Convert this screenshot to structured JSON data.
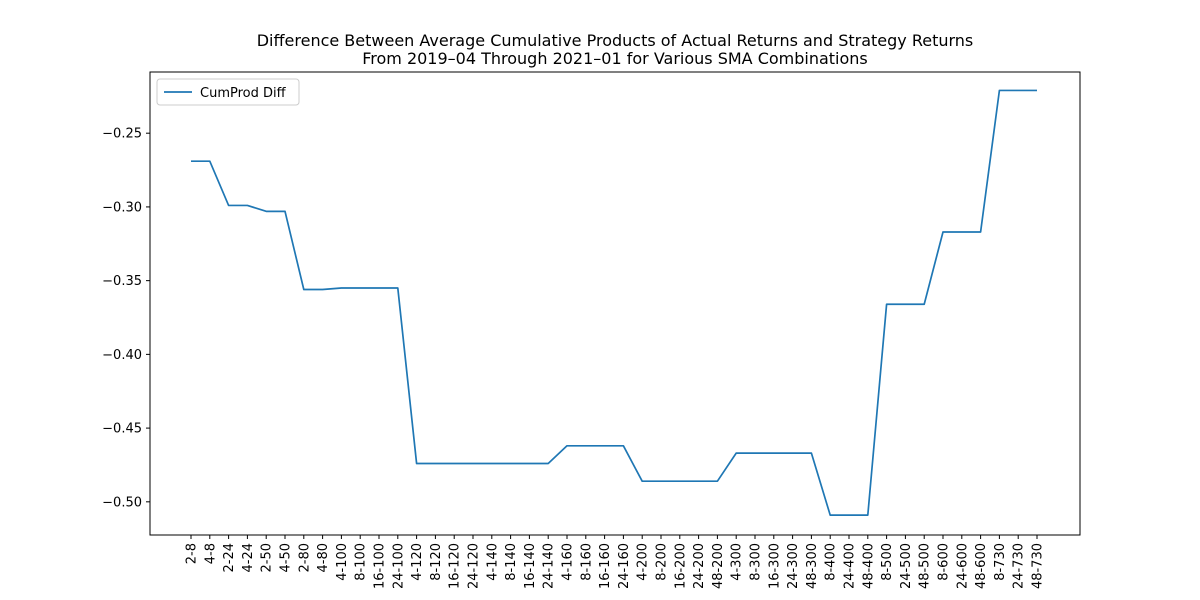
{
  "chart_data": {
    "type": "line",
    "title": "Difference Between Average Cumulative Products of Actual Returns and Strategy Returns",
    "subtitle": "From 2019–04 Through 2021–01 for Various SMA Combinations",
    "xlabel": "",
    "ylabel": "",
    "categories": [
      "2-8",
      "4-8",
      "2-24",
      "4-24",
      "2-50",
      "4-50",
      "2-80",
      "4-80",
      "4-100",
      "8-100",
      "16-100",
      "24-100",
      "4-120",
      "8-120",
      "16-120",
      "24-120",
      "4-140",
      "8-140",
      "16-140",
      "24-140",
      "4-160",
      "8-160",
      "16-160",
      "24-160",
      "4-200",
      "8-200",
      "16-200",
      "24-200",
      "48-200",
      "4-300",
      "8-300",
      "16-300",
      "24-300",
      "48-300",
      "8-400",
      "24-400",
      "48-400",
      "8-500",
      "24-500",
      "48-500",
      "8-600",
      "24-600",
      "48-600",
      "8-730",
      "24-730",
      "48-730"
    ],
    "series": [
      {
        "name": "CumProd Diff",
        "color": "#1f77b4",
        "values": [
          -0.269,
          -0.269,
          -0.299,
          -0.299,
          -0.303,
          -0.303,
          -0.356,
          -0.356,
          -0.355,
          -0.355,
          -0.355,
          -0.355,
          -0.474,
          -0.474,
          -0.474,
          -0.474,
          -0.474,
          -0.474,
          -0.474,
          -0.474,
          -0.462,
          -0.462,
          -0.462,
          -0.462,
          -0.486,
          -0.486,
          -0.486,
          -0.486,
          -0.486,
          -0.467,
          -0.467,
          -0.467,
          -0.467,
          -0.467,
          -0.509,
          -0.509,
          -0.509,
          -0.366,
          -0.366,
          -0.366,
          -0.317,
          -0.317,
          -0.317,
          -0.221,
          -0.221,
          -0.221
        ]
      }
    ],
    "ylim": [
      -0.5225,
      -0.2085
    ],
    "yticks": [
      -0.25,
      -0.3,
      -0.35,
      -0.4,
      -0.45,
      -0.5
    ],
    "ytick_labels": [
      "−0.25",
      "−0.30",
      "−0.35",
      "−0.40",
      "−0.45",
      "−0.50"
    ],
    "grid": false,
    "legend": "top-left"
  }
}
